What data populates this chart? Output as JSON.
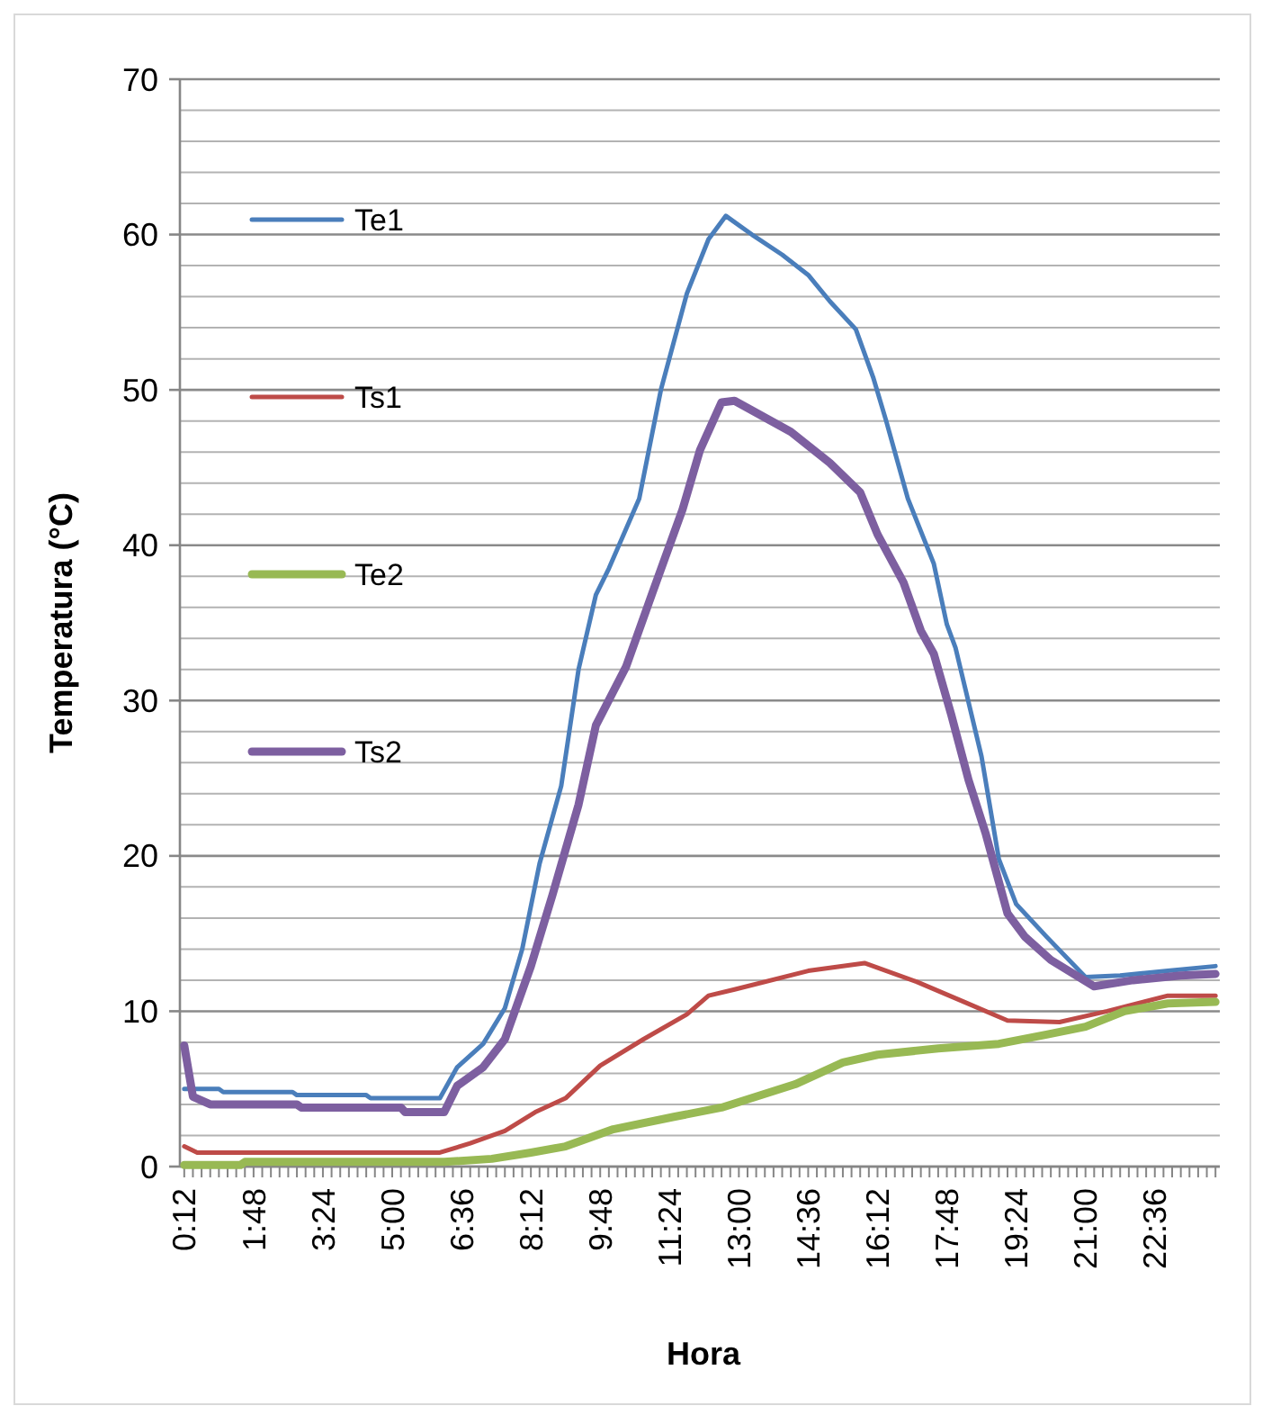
{
  "chart_data": {
    "type": "line",
    "xlabel": "Hora",
    "ylabel": "Temperatura (°C)",
    "xlim": [
      0.1,
      24.1
    ],
    "ylim": [
      0,
      70
    ],
    "xticks": [
      {
        "value": 0.2,
        "label": "0:12"
      },
      {
        "value": 0.4,
        "label": null
      },
      {
        "value": 0.6,
        "label": null
      },
      {
        "value": 0.8,
        "label": null
      },
      {
        "value": 1.0,
        "label": null
      },
      {
        "value": 1.2,
        "label": null
      },
      {
        "value": 1.4,
        "label": null
      },
      {
        "value": 1.6,
        "label": null
      },
      {
        "value": 1.8,
        "label": "1:48"
      },
      {
        "value": 2.0,
        "label": null
      },
      {
        "value": 2.2,
        "label": null
      },
      {
        "value": 2.4,
        "label": null
      },
      {
        "value": 2.6,
        "label": null
      },
      {
        "value": 2.8,
        "label": null
      },
      {
        "value": 3.0,
        "label": null
      },
      {
        "value": 3.2,
        "label": null
      },
      {
        "value": 3.4,
        "label": "3:24"
      },
      {
        "value": 3.6,
        "label": null
      },
      {
        "value": 3.8,
        "label": null
      },
      {
        "value": 4.0,
        "label": null
      },
      {
        "value": 4.2,
        "label": null
      },
      {
        "value": 4.4,
        "label": null
      },
      {
        "value": 4.6,
        "label": null
      },
      {
        "value": 4.8,
        "label": null
      },
      {
        "value": 5.0,
        "label": "5:00"
      },
      {
        "value": 5.2,
        "label": null
      },
      {
        "value": 5.4,
        "label": null
      },
      {
        "value": 5.6,
        "label": null
      },
      {
        "value": 5.8,
        "label": null
      },
      {
        "value": 6.0,
        "label": null
      },
      {
        "value": 6.2,
        "label": null
      },
      {
        "value": 6.4,
        "label": null
      },
      {
        "value": 6.6,
        "label": "6:36"
      },
      {
        "value": 6.8,
        "label": null
      },
      {
        "value": 7.0,
        "label": null
      },
      {
        "value": 7.2,
        "label": null
      },
      {
        "value": 7.4,
        "label": null
      },
      {
        "value": 7.6,
        "label": null
      },
      {
        "value": 7.8,
        "label": null
      },
      {
        "value": 8.0,
        "label": null
      },
      {
        "value": 8.2,
        "label": "8:12"
      },
      {
        "value": 8.4,
        "label": null
      },
      {
        "value": 8.6,
        "label": null
      },
      {
        "value": 8.8,
        "label": null
      },
      {
        "value": 9.0,
        "label": null
      },
      {
        "value": 9.2,
        "label": null
      },
      {
        "value": 9.4,
        "label": null
      },
      {
        "value": 9.6,
        "label": null
      },
      {
        "value": 9.8,
        "label": "9:48"
      },
      {
        "value": 10.0,
        "label": null
      },
      {
        "value": 10.2,
        "label": null
      },
      {
        "value": 10.4,
        "label": null
      },
      {
        "value": 10.6,
        "label": null
      },
      {
        "value": 10.8,
        "label": null
      },
      {
        "value": 11.0,
        "label": null
      },
      {
        "value": 11.2,
        "label": null
      },
      {
        "value": 11.4,
        "label": "11:24"
      },
      {
        "value": 11.6,
        "label": null
      },
      {
        "value": 11.8,
        "label": null
      },
      {
        "value": 12.0,
        "label": null
      },
      {
        "value": 12.2,
        "label": null
      },
      {
        "value": 12.4,
        "label": null
      },
      {
        "value": 12.6,
        "label": null
      },
      {
        "value": 12.8,
        "label": null
      },
      {
        "value": 13.0,
        "label": "13:00"
      },
      {
        "value": 13.2,
        "label": null
      },
      {
        "value": 13.4,
        "label": null
      },
      {
        "value": 13.6,
        "label": null
      },
      {
        "value": 13.8,
        "label": null
      },
      {
        "value": 14.0,
        "label": null
      },
      {
        "value": 14.2,
        "label": null
      },
      {
        "value": 14.4,
        "label": null
      },
      {
        "value": 14.6,
        "label": "14:36"
      },
      {
        "value": 14.8,
        "label": null
      },
      {
        "value": 15.0,
        "label": null
      },
      {
        "value": 15.2,
        "label": null
      },
      {
        "value": 15.4,
        "label": null
      },
      {
        "value": 15.6,
        "label": null
      },
      {
        "value": 15.8,
        "label": null
      },
      {
        "value": 16.0,
        "label": null
      },
      {
        "value": 16.2,
        "label": "16:12"
      },
      {
        "value": 16.4,
        "label": null
      },
      {
        "value": 16.6,
        "label": null
      },
      {
        "value": 16.8,
        "label": null
      },
      {
        "value": 17.0,
        "label": null
      },
      {
        "value": 17.2,
        "label": null
      },
      {
        "value": 17.4,
        "label": null
      },
      {
        "value": 17.6,
        "label": null
      },
      {
        "value": 17.8,
        "label": "17:48"
      },
      {
        "value": 18.0,
        "label": null
      },
      {
        "value": 18.2,
        "label": null
      },
      {
        "value": 18.4,
        "label": null
      },
      {
        "value": 18.6,
        "label": null
      },
      {
        "value": 18.8,
        "label": null
      },
      {
        "value": 19.0,
        "label": null
      },
      {
        "value": 19.2,
        "label": null
      },
      {
        "value": 19.4,
        "label": "19:24"
      },
      {
        "value": 19.6,
        "label": null
      },
      {
        "value": 19.8,
        "label": null
      },
      {
        "value": 20.0,
        "label": null
      },
      {
        "value": 20.2,
        "label": null
      },
      {
        "value": 20.4,
        "label": null
      },
      {
        "value": 20.6,
        "label": null
      },
      {
        "value": 20.8,
        "label": null
      },
      {
        "value": 21.0,
        "label": "21:00"
      },
      {
        "value": 21.2,
        "label": null
      },
      {
        "value": 21.4,
        "label": null
      },
      {
        "value": 21.6,
        "label": null
      },
      {
        "value": 21.8,
        "label": null
      },
      {
        "value": 22.0,
        "label": null
      },
      {
        "value": 22.2,
        "label": null
      },
      {
        "value": 22.4,
        "label": null
      },
      {
        "value": 22.6,
        "label": "22:36"
      },
      {
        "value": 22.8,
        "label": null
      },
      {
        "value": 23.0,
        "label": null
      },
      {
        "value": 23.2,
        "label": null
      },
      {
        "value": 23.4,
        "label": null
      },
      {
        "value": 23.6,
        "label": null
      },
      {
        "value": 23.8,
        "label": null
      },
      {
        "value": 24.0,
        "label": null
      }
    ],
    "yticks": [
      0,
      {
        "value": 2,
        "label": null
      },
      {
        "value": 4,
        "label": null
      },
      {
        "value": 6,
        "label": null
      },
      {
        "value": 8,
        "label": null
      },
      10,
      {
        "value": 12,
        "label": null
      },
      {
        "value": 14,
        "label": null
      },
      {
        "value": 16,
        "label": null
      },
      {
        "value": 18,
        "label": null
      },
      20,
      {
        "value": 22,
        "label": null
      },
      {
        "value": 24,
        "label": null
      },
      {
        "value": 26,
        "label": null
      },
      {
        "value": 28,
        "label": null
      },
      30,
      {
        "value": 32,
        "label": null
      },
      {
        "value": 34,
        "label": null
      },
      {
        "value": 36,
        "label": null
      },
      {
        "value": 38,
        "label": null
      },
      40,
      {
        "value": 42,
        "label": null
      },
      {
        "value": 44,
        "label": null
      },
      {
        "value": 46,
        "label": null
      },
      {
        "value": 48,
        "label": null
      },
      50,
      {
        "value": 52,
        "label": null
      },
      {
        "value": 54,
        "label": null
      },
      {
        "value": 56,
        "label": null
      },
      {
        "value": 58,
        "label": null
      },
      60,
      {
        "value": 62,
        "label": null
      },
      {
        "value": 64,
        "label": null
      },
      {
        "value": 66,
        "label": null
      },
      {
        "value": 68,
        "label": null
      },
      70
    ],
    "grid": "y",
    "legend": "left",
    "marker": "none",
    "line_style": "solid",
    "series": [
      {
        "name": "Te1",
        "color": "#4a7ebb",
        "x": [
          0.2,
          0.4,
          1.0,
          1.1,
          2.7,
          2.8,
          4.4,
          4.5,
          6.1,
          6.5,
          7.1,
          7.6,
          8.0,
          8.4,
          8.9,
          9.3,
          9.7,
          10.0,
          10.7,
          11.2,
          11.8,
          12.3,
          12.7,
          13.3,
          14.0,
          14.6,
          15.1,
          15.7,
          16.1,
          16.4,
          16.9,
          17.5,
          17.8,
          18.0,
          18.6,
          19.0,
          19.4,
          20.1,
          21.0,
          21.8,
          22.9,
          24.0
        ],
        "values": [
          5.0,
          5.0,
          5.0,
          4.8,
          4.8,
          4.6,
          4.6,
          4.4,
          4.4,
          6.4,
          7.9,
          10.2,
          14,
          19.5,
          24.5,
          32,
          36.8,
          38.5,
          43,
          50,
          56.2,
          59.7,
          61.2,
          60,
          58.7,
          57.4,
          55.7,
          53.9,
          50.8,
          48,
          43,
          38.8,
          34.9,
          33.4,
          26.4,
          19.8,
          16.9,
          14.8,
          12.2,
          12.3,
          12.6,
          12.9
        ]
      },
      {
        "name": "Ts1",
        "color": "#be4b48",
        "x": [
          0.2,
          0.5,
          6.1,
          6.8,
          7.6,
          8.3,
          9.0,
          9.8,
          10.8,
          11.8,
          12.3,
          12.9,
          14.6,
          15.9,
          17.1,
          18.2,
          19.2,
          20.4,
          21.5,
          22.9,
          24.0
        ],
        "values": [
          1.3,
          0.9,
          0.9,
          1.5,
          2.3,
          3.5,
          4.4,
          6.5,
          8.2,
          9.8,
          11.0,
          11.4,
          12.6,
          13.1,
          11.9,
          10.6,
          9.4,
          9.3,
          10.0,
          11.0,
          11.0
        ]
      },
      {
        "name": "Te2",
        "color": "#98b954",
        "x": [
          0.2,
          1.5,
          1.6,
          6.2,
          7.3,
          8.2,
          9.0,
          10.1,
          11.5,
          12.6,
          14.3,
          15.4,
          16.2,
          17.6,
          19.0,
          20.1,
          21.0,
          21.9,
          22.9,
          24.0
        ],
        "values": [
          0.1,
          0.1,
          0.3,
          0.3,
          0.5,
          0.9,
          1.3,
          2.4,
          3.2,
          3.8,
          5.3,
          6.7,
          7.2,
          7.6,
          7.9,
          8.5,
          9.0,
          10.0,
          10.5,
          10.6
        ]
      },
      {
        "name": "Ts2",
        "color": "#7d5fa0",
        "x": [
          0.2,
          0.4,
          0.8,
          2.8,
          2.9,
          5.2,
          5.3,
          6.2,
          6.5,
          7.1,
          7.6,
          8.2,
          8.7,
          9.3,
          9.7,
          10.4,
          11.0,
          11.7,
          12.1,
          12.6,
          12.9,
          14.2,
          15.1,
          15.8,
          16.2,
          16.8,
          17.2,
          17.5,
          17.9,
          18.3,
          18.7,
          19.2,
          19.6,
          20.2,
          21.2,
          22.1,
          23.2,
          24.0
        ],
        "values": [
          7.8,
          4.5,
          4.0,
          4.0,
          3.8,
          3.8,
          3.5,
          3.5,
          5.2,
          6.4,
          8.2,
          12.9,
          17.5,
          23.3,
          28.4,
          32.2,
          36.9,
          42.3,
          46.1,
          49.2,
          49.3,
          47.3,
          45.3,
          43.4,
          40.7,
          37.6,
          34.5,
          33,
          29.1,
          24.9,
          21.4,
          16.3,
          14.8,
          13.3,
          11.6,
          12.0,
          12.3,
          12.4
        ]
      }
    ]
  }
}
